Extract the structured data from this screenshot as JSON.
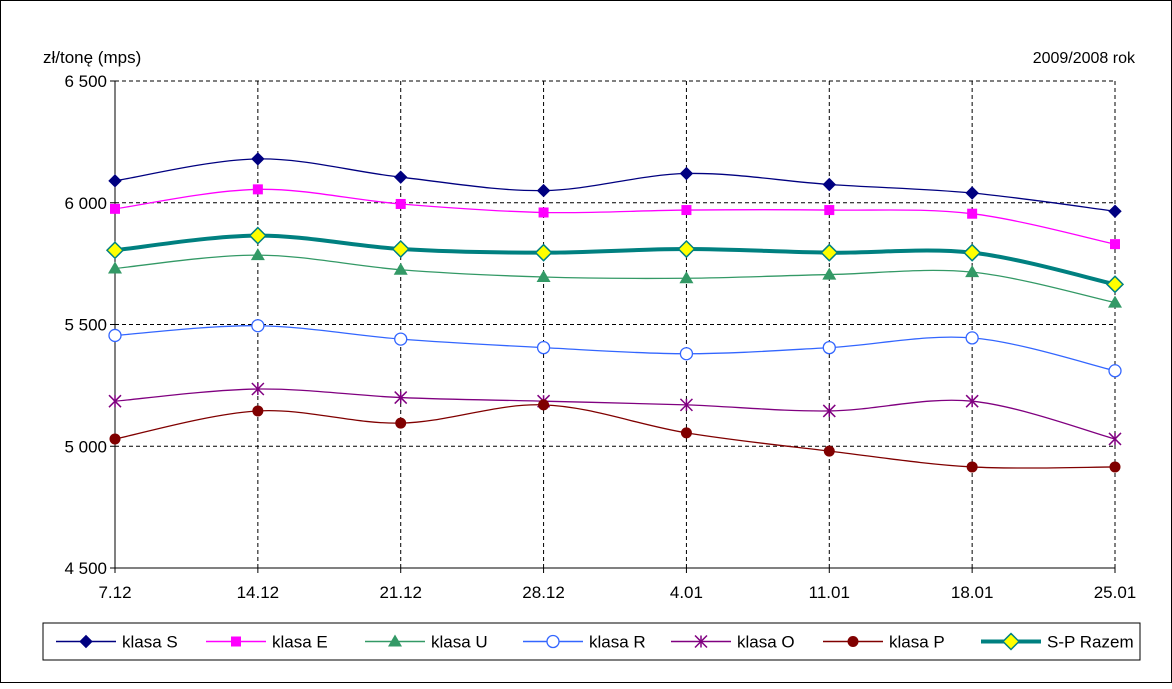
{
  "chart_data": {
    "type": "line",
    "ylabel": "zł/tonę (mps)",
    "corner_label": "2009/2008 rok",
    "categories": [
      "7.12",
      "14.12",
      "21.12",
      "28.12",
      "4.01",
      "11.01",
      "18.01",
      "25.01"
    ],
    "y_ticks": [
      "6 500",
      "6 000",
      "5 500",
      "5 000",
      "4 500"
    ],
    "ylim": [
      4500,
      6500
    ],
    "grid": "dashed, both axes",
    "legend_position": "bottom",
    "series": [
      {
        "name": "klasa S",
        "color": "#000080",
        "marker": "diamond",
        "values": [
          6090,
          6180,
          6105,
          6050,
          6120,
          6075,
          6040,
          5965
        ]
      },
      {
        "name": "klasa E",
        "color": "#FF00FF",
        "marker": "square",
        "values": [
          5975,
          6055,
          5995,
          5960,
          5970,
          5970,
          5955,
          5830
        ]
      },
      {
        "name": "klasa U",
        "color": "#339966",
        "marker": "triangle",
        "values": [
          5730,
          5785,
          5725,
          5695,
          5690,
          5705,
          5715,
          5590
        ]
      },
      {
        "name": "klasa R",
        "color": "#3366FF",
        "marker": "circle-open",
        "values": [
          5455,
          5495,
          5440,
          5405,
          5380,
          5405,
          5445,
          5310
        ]
      },
      {
        "name": "klasa O",
        "color": "#800080",
        "marker": "star",
        "values": [
          5185,
          5235,
          5200,
          5185,
          5170,
          5145,
          5185,
          5030
        ]
      },
      {
        "name": "klasa P",
        "color": "#800000",
        "marker": "circle",
        "values": [
          5030,
          5145,
          5095,
          5170,
          5055,
          4980,
          4915,
          4915
        ]
      },
      {
        "name": "S-P Razem",
        "color": "#008080",
        "marker": "diamond-yellow",
        "thick": true,
        "values": [
          5805,
          5865,
          5810,
          5795,
          5810,
          5795,
          5795,
          5665
        ]
      }
    ]
  }
}
